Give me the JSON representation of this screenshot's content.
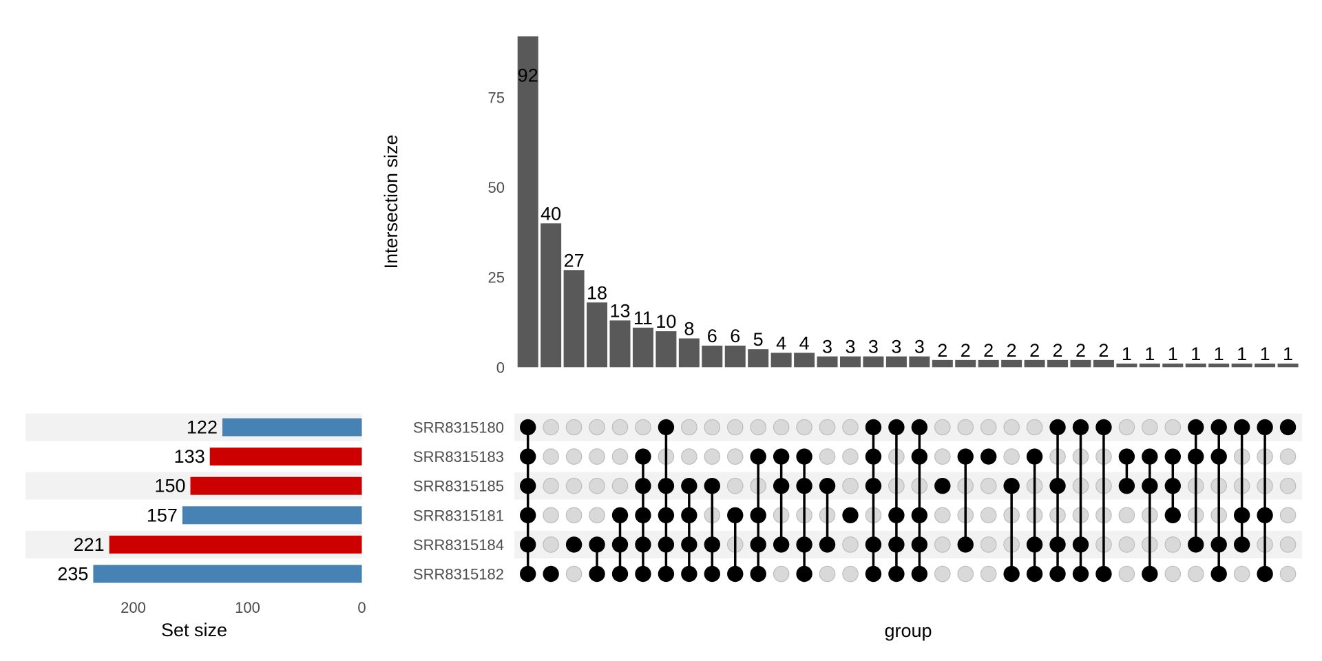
{
  "chart_data": {
    "type": "upset",
    "intersection_chart": {
      "type": "bar",
      "ylabel": "Intersection size",
      "xlabel": "group",
      "ylim": [
        0,
        92
      ],
      "yticks": [
        0,
        25,
        50,
        75
      ],
      "bar_color": "#595959",
      "label_color_inside": "#ffffff",
      "values": [
        92,
        40,
        27,
        18,
        13,
        11,
        10,
        8,
        6,
        6,
        5,
        4,
        4,
        3,
        3,
        3,
        3,
        3,
        2,
        2,
        2,
        2,
        2,
        2,
        2,
        2,
        1,
        1,
        1,
        1,
        1,
        1,
        1,
        1
      ]
    },
    "sets": [
      {
        "name": "SRR8315180",
        "size": 122,
        "color": "#4682b4"
      },
      {
        "name": "SRR8315183",
        "size": 133,
        "color": "#cd0000"
      },
      {
        "name": "SRR8315185",
        "size": 150,
        "color": "#cd0000"
      },
      {
        "name": "SRR8315181",
        "size": 157,
        "color": "#4682b4"
      },
      {
        "name": "SRR8315184",
        "size": 221,
        "color": "#cd0000"
      },
      {
        "name": "SRR8315182",
        "size": 235,
        "color": "#4682b4"
      }
    ],
    "set_size_chart": {
      "type": "bar",
      "xlabel": "Set size",
      "xticks": [
        200,
        100,
        0
      ],
      "xlim": [
        0,
        235
      ],
      "orientation": "reversed-horizontal"
    },
    "matrix": {
      "rows": [
        "SRR8315180",
        "SRR8315183",
        "SRR8315185",
        "SRR8315181",
        "SRR8315184",
        "SRR8315182"
      ],
      "columns": [
        [
          "SRR8315180",
          "SRR8315183",
          "SRR8315185",
          "SRR8315181",
          "SRR8315184",
          "SRR8315182"
        ],
        [
          "SRR8315182"
        ],
        [
          "SRR8315184"
        ],
        [
          "SRR8315184",
          "SRR8315182"
        ],
        [
          "SRR8315181",
          "SRR8315184",
          "SRR8315182"
        ],
        [
          "SRR8315183",
          "SRR8315185",
          "SRR8315181",
          "SRR8315184",
          "SRR8315182"
        ],
        [
          "SRR8315180",
          "SRR8315185",
          "SRR8315181",
          "SRR8315184",
          "SRR8315182"
        ],
        [
          "SRR8315185",
          "SRR8315181",
          "SRR8315184",
          "SRR8315182"
        ],
        [
          "SRR8315185",
          "SRR8315184",
          "SRR8315182"
        ],
        [
          "SRR8315181",
          "SRR8315182"
        ],
        [
          "SRR8315183",
          "SRR8315181",
          "SRR8315184",
          "SRR8315182"
        ],
        [
          "SRR8315183",
          "SRR8315185",
          "SRR8315184"
        ],
        [
          "SRR8315183",
          "SRR8315185",
          "SRR8315184",
          "SRR8315182"
        ],
        [
          "SRR8315185",
          "SRR8315184"
        ],
        [
          "SRR8315181"
        ],
        [
          "SRR8315180",
          "SRR8315183",
          "SRR8315185",
          "SRR8315184",
          "SRR8315182"
        ],
        [
          "SRR8315180",
          "SRR8315181",
          "SRR8315184",
          "SRR8315182"
        ],
        [
          "SRR8315180",
          "SRR8315183",
          "SRR8315181",
          "SRR8315184",
          "SRR8315182"
        ],
        [
          "SRR8315185"
        ],
        [
          "SRR8315183",
          "SRR8315184"
        ],
        [
          "SRR8315183"
        ],
        [
          "SRR8315185",
          "SRR8315182"
        ],
        [
          "SRR8315183",
          "SRR8315184",
          "SRR8315182"
        ],
        [
          "SRR8315180",
          "SRR8315185",
          "SRR8315184",
          "SRR8315182"
        ],
        [
          "SRR8315180",
          "SRR8315184",
          "SRR8315182"
        ],
        [
          "SRR8315180",
          "SRR8315182"
        ],
        [
          "SRR8315183",
          "SRR8315185"
        ],
        [
          "SRR8315183",
          "SRR8315185",
          "SRR8315182"
        ],
        [
          "SRR8315183",
          "SRR8315185",
          "SRR8315181"
        ],
        [
          "SRR8315180",
          "SRR8315183",
          "SRR8315184"
        ],
        [
          "SRR8315180",
          "SRR8315183",
          "SRR8315184",
          "SRR8315182"
        ],
        [
          "SRR8315180",
          "SRR8315181",
          "SRR8315184"
        ],
        [
          "SRR8315180",
          "SRR8315181",
          "SRR8315182"
        ],
        [
          "SRR8315180"
        ]
      ],
      "active_color": "#000000",
      "inactive_color": "#d9d9d9",
      "stripe_color": "#f2f2f2"
    }
  }
}
